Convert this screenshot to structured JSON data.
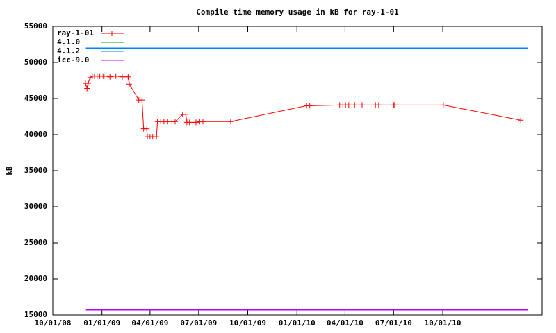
{
  "chart_data": {
    "type": "line",
    "title": "Compile time memory usage in kB for ray-1-01",
    "y_label": "kB",
    "xlim": [
      "10/01/08",
      "04/05/11"
    ],
    "xticks": [
      "10/01/08",
      "01/01/09",
      "04/01/09",
      "07/01/09",
      "10/01/09",
      "01/01/10",
      "04/01/10",
      "07/01/10",
      "10/01/10"
    ],
    "ylim": [
      15000,
      55000
    ],
    "yticks": [
      15000,
      20000,
      25000,
      30000,
      35000,
      40000,
      45000,
      50000,
      55000
    ],
    "legend": "top-left",
    "series": [
      {
        "name": "ray-1-01",
        "color": "#ff0000",
        "marker": "+",
        "x": [
          "12/01/08",
          "12/04/08",
          "12/06/08",
          "12/10/08",
          "12/14/08",
          "12/18/08",
          "12/23/08",
          "12/28/08",
          "01/03/09",
          "01/05/09",
          "01/16/09",
          "01/27/09",
          "02/08/09",
          "02/19/09",
          "02/21/09",
          "03/11/09",
          "03/17/09",
          "03/20/09",
          "03/26/09",
          "03/27/09",
          "04/01/09",
          "04/06/09",
          "04/13/09",
          "04/15/09",
          "04/21/09",
          "04/27/09",
          "05/04/09",
          "05/12/09",
          "05/18/09",
          "06/01/09",
          "06/07/09",
          "06/09/09",
          "06/14/09",
          "06/26/09",
          "07/03/09",
          "07/09/09",
          "08/30/09",
          "01/19/10",
          "01/25/10",
          "03/22/10",
          "03/28/10",
          "04/02/10",
          "04/08/10",
          "04/19/10",
          "05/03/10",
          "05/28/10",
          "06/03/10",
          "07/01/10",
          "07/03/10",
          "10/02/10",
          "02/24/11"
        ],
        "values": [
          47100,
          46400,
          47100,
          47900,
          48100,
          48100,
          48100,
          48100,
          48100,
          48100,
          48000,
          48100,
          48000,
          48000,
          47000,
          44800,
          44800,
          40800,
          40800,
          39700,
          39700,
          39700,
          39700,
          41800,
          41800,
          41800,
          41800,
          41800,
          41800,
          42800,
          42800,
          41700,
          41700,
          41700,
          41800,
          41800,
          41800,
          44000,
          44000,
          44100,
          44100,
          44100,
          44100,
          44100,
          44100,
          44100,
          44100,
          44100,
          44100,
          44100,
          42000
        ]
      },
      {
        "name": "4.1.0",
        "color": "#00a000",
        "x": [
          "12/02/08",
          "03/10/11"
        ],
        "values": [
          52000,
          52000
        ]
      },
      {
        "name": "4.1.2",
        "color": "#0080ff",
        "x": [
          "12/02/08",
          "03/10/11"
        ],
        "values": [
          52000,
          52000
        ]
      },
      {
        "name": "icc-9.0",
        "color": "#c000ff",
        "x": [
          "12/02/08",
          "03/10/11"
        ],
        "values": [
          15700,
          15700
        ]
      }
    ]
  }
}
